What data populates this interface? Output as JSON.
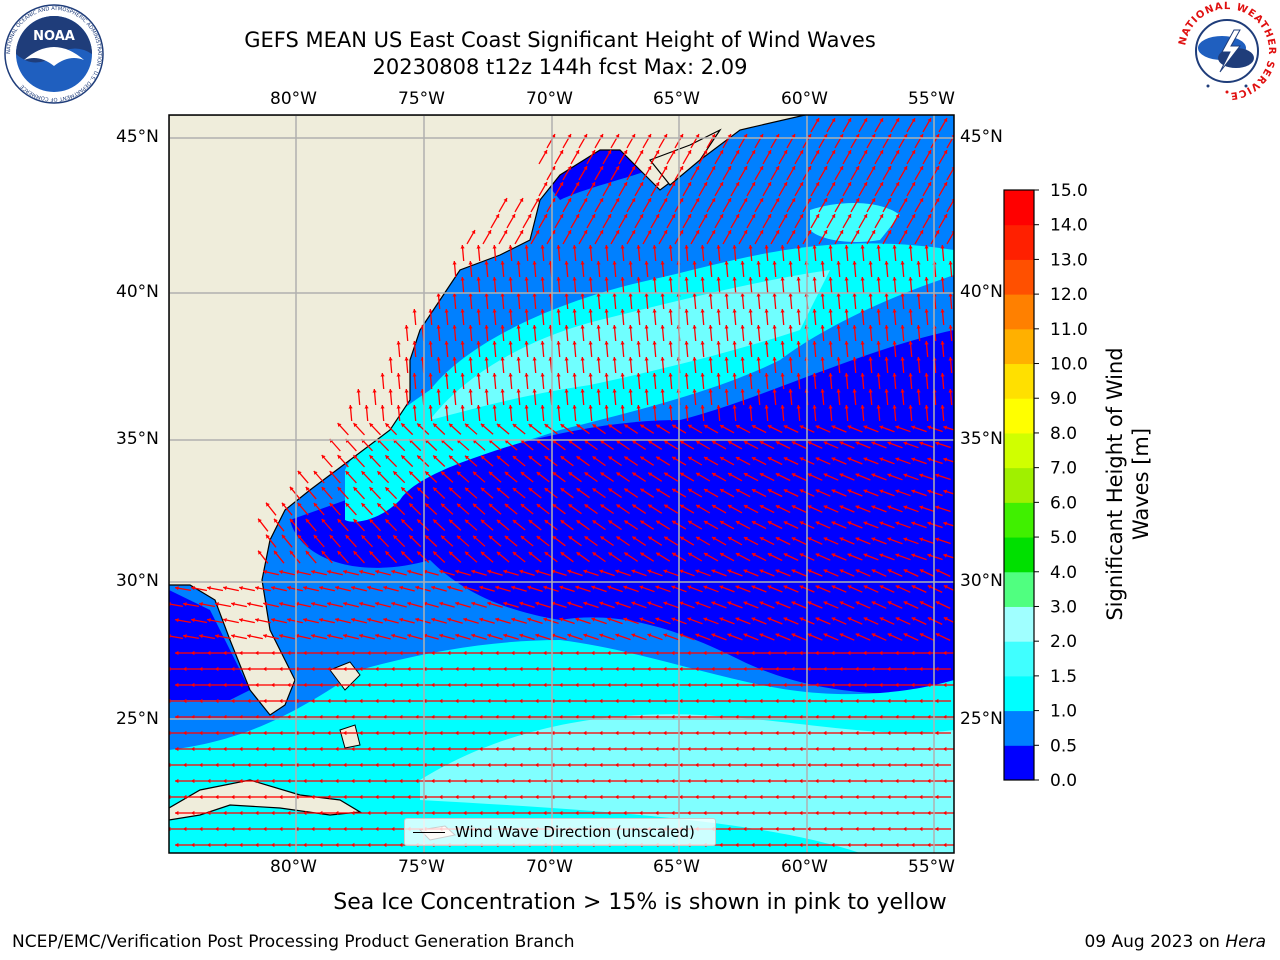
{
  "header": {
    "title_line1": "GEFS MEAN US East Coast Significant Height of Wind Waves",
    "title_line2": "20230808 t12z 144h fcst   Max: 2.09"
  },
  "logos": {
    "left_icon": "noaa-logo-icon",
    "left_text": "NOAA",
    "left_ring_text": "NATIONAL OCEANIC AND ATMOSPHERIC ADMINISTRATION · U.S. DEPARTMENT OF COMMERCE",
    "right_icon": "nws-logo-icon",
    "right_ring_text": "NATIONAL WEATHER SERVICE"
  },
  "map": {
    "lon_labels": [
      "80°W",
      "75°W",
      "70°W",
      "65°W",
      "60°W",
      "55°W"
    ],
    "lat_labels": [
      "45°N",
      "40°N",
      "35°N",
      "30°N",
      "25°N"
    ],
    "land_color": "#efeddb",
    "arrow_color": "#ff0000",
    "grid_color": "#b0b0b0",
    "legend_label": "Wind Wave Direction (unscaled)"
  },
  "colorbar": {
    "label_line1": "Significant Height of Wind",
    "label_line2": "Waves [m]",
    "ticks": [
      "0.0",
      "0.5",
      "1.0",
      "1.5",
      "2.0",
      "3.0",
      "4.0",
      "5.0",
      "6.0",
      "7.0",
      "8.0",
      "9.0",
      "10.0",
      "11.0",
      "12.0",
      "13.0",
      "14.0",
      "15.0"
    ],
    "colors": [
      "#0000ff",
      "#0080ff",
      "#00ffff",
      "#40ffff",
      "#a0ffff",
      "#50ff80",
      "#00e000",
      "#40f000",
      "#a0f000",
      "#d0ff00",
      "#ffff00",
      "#ffe000",
      "#ffb000",
      "#ff8000",
      "#ff5000",
      "#ff2000",
      "#ff0000"
    ]
  },
  "footer": {
    "note": "Sea Ice Concentration > 15% is shown in pink to yellow",
    "credit": "NCEP/EMC/Verification Post Processing Product Generation Branch",
    "date": "09 Aug 2023 on ",
    "machine": "Hera"
  }
}
